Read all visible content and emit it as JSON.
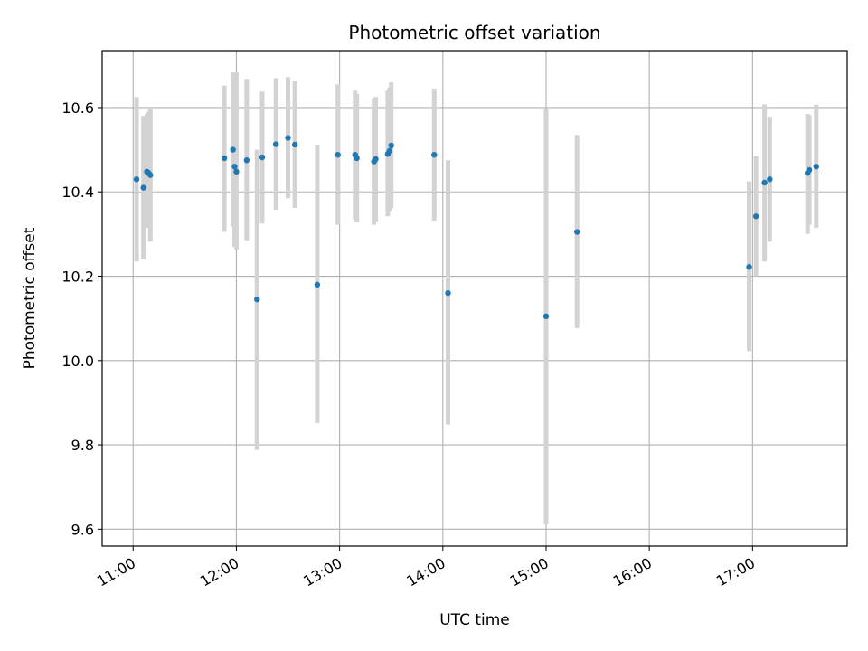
{
  "chart_data": {
    "type": "scatter",
    "title": "Photometric offset variation",
    "xlabel": "UTC time",
    "ylabel": "Photometric offset",
    "x_ticks": [
      "11:00",
      "12:00",
      "13:00",
      "14:00",
      "15:00",
      "16:00",
      "17:00"
    ],
    "xlim": [
      "10:42",
      "17:55"
    ],
    "ylim": [
      9.56,
      10.735
    ],
    "y_ticks": [
      9.6,
      9.8,
      10.0,
      10.2,
      10.4,
      10.6
    ],
    "y_tick_labels": [
      "9.6",
      "9.8",
      "10.0",
      "10.2",
      "10.4",
      "10.6"
    ],
    "grid": true,
    "point_color": "#1f77b4",
    "errorbar_color": "#d3d3d3",
    "series": [
      {
        "points": [
          {
            "x": "11:02",
            "y": 10.43,
            "ylo": 10.235,
            "yhi": 10.625
          },
          {
            "x": "11:06",
            "y": 10.41,
            "ylo": 10.24,
            "yhi": 10.58
          },
          {
            "x": "11:08",
            "y": 10.448,
            "ylo": 10.315,
            "yhi": 10.585
          },
          {
            "x": "11:09",
            "y": 10.445,
            "ylo": 10.32,
            "yhi": 10.59
          },
          {
            "x": "11:10",
            "y": 10.44,
            "ylo": 10.282,
            "yhi": 10.6
          },
          {
            "x": "11:53",
            "y": 10.48,
            "ylo": 10.305,
            "yhi": 10.652
          },
          {
            "x": "11:58",
            "y": 10.5,
            "ylo": 10.318,
            "yhi": 10.683
          },
          {
            "x": "11:59",
            "y": 10.46,
            "ylo": 10.27,
            "yhi": 10.652
          },
          {
            "x": "12:00",
            "y": 10.448,
            "ylo": 10.263,
            "yhi": 10.683
          },
          {
            "x": "12:06",
            "y": 10.475,
            "ylo": 10.285,
            "yhi": 10.668
          },
          {
            "x": "12:12",
            "y": 10.145,
            "ylo": 9.788,
            "yhi": 10.5
          },
          {
            "x": "12:15",
            "y": 10.482,
            "ylo": 10.325,
            "yhi": 10.638
          },
          {
            "x": "12:23",
            "y": 10.513,
            "ylo": 10.358,
            "yhi": 10.67
          },
          {
            "x": "12:30",
            "y": 10.528,
            "ylo": 10.385,
            "yhi": 10.672
          },
          {
            "x": "12:34",
            "y": 10.512,
            "ylo": 10.362,
            "yhi": 10.662
          },
          {
            "x": "12:47",
            "y": 10.18,
            "ylo": 9.852,
            "yhi": 10.512
          },
          {
            "x": "12:59",
            "y": 10.488,
            "ylo": 10.322,
            "yhi": 10.655
          },
          {
            "x": "13:09",
            "y": 10.488,
            "ylo": 10.335,
            "yhi": 10.64
          },
          {
            "x": "13:10",
            "y": 10.48,
            "ylo": 10.328,
            "yhi": 10.632
          },
          {
            "x": "13:20",
            "y": 10.472,
            "ylo": 10.322,
            "yhi": 10.622
          },
          {
            "x": "13:21",
            "y": 10.478,
            "ylo": 10.33,
            "yhi": 10.625
          },
          {
            "x": "13:28",
            "y": 10.49,
            "ylo": 10.342,
            "yhi": 10.64
          },
          {
            "x": "13:29",
            "y": 10.497,
            "ylo": 10.355,
            "yhi": 10.648
          },
          {
            "x": "13:30",
            "y": 10.51,
            "ylo": 10.362,
            "yhi": 10.66
          },
          {
            "x": "13:55",
            "y": 10.488,
            "ylo": 10.332,
            "yhi": 10.645
          },
          {
            "x": "14:03",
            "y": 10.16,
            "ylo": 9.848,
            "yhi": 10.475
          },
          {
            "x": "15:00",
            "y": 10.105,
            "ylo": 9.612,
            "yhi": 10.597
          },
          {
            "x": "15:18",
            "y": 10.305,
            "ylo": 10.077,
            "yhi": 10.535
          },
          {
            "x": "16:58",
            "y": 10.222,
            "ylo": 10.022,
            "yhi": 10.425
          },
          {
            "x": "17:02",
            "y": 10.342,
            "ylo": 10.2,
            "yhi": 10.485
          },
          {
            "x": "17:07",
            "y": 10.422,
            "ylo": 10.235,
            "yhi": 10.608
          },
          {
            "x": "17:10",
            "y": 10.43,
            "ylo": 10.282,
            "yhi": 10.578
          },
          {
            "x": "17:32",
            "y": 10.445,
            "ylo": 10.3,
            "yhi": 10.585
          },
          {
            "x": "17:33",
            "y": 10.452,
            "ylo": 10.322,
            "yhi": 10.582
          },
          {
            "x": "17:37",
            "y": 10.46,
            "ylo": 10.315,
            "yhi": 10.607
          }
        ]
      }
    ]
  }
}
